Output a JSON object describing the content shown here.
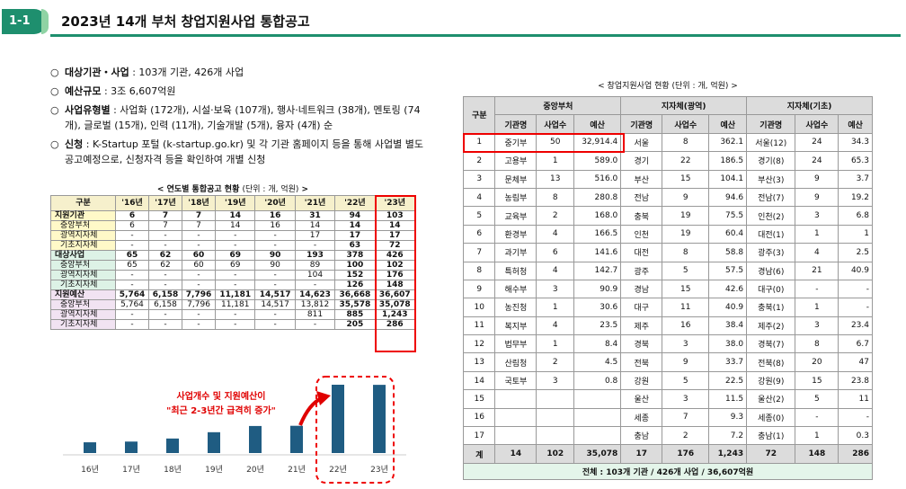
{
  "header": {
    "badge": "1-1",
    "title": "2023년 14개 부처 창업지원사업 통합공고"
  },
  "bullets": [
    {
      "label": "대상기관・사업",
      "text": " : 103개 기관, 426개 사업"
    },
    {
      "label": "예산규모",
      "text": " : 3조 6,607억원"
    },
    {
      "label": "사업유형별",
      "text": " : 사업화 (172개), 시설·보육 (107개), 행사·네트워크 (38개), 멘토링 (74개), 글로벌 (15개), 인력 (11개), 기술개발 (5개), 융자 (4개) 순"
    },
    {
      "label": "신청",
      "text": " : K-Startup 포털 (k-startup.go.kr) 및 각 기관 홈페이지 등을 통해 사업별 별도 공고예정으로, 신청자격 등을 확인하여 개별 신청"
    }
  ],
  "yearly_table": {
    "title": "< 연도별 통합공고 현황 ",
    "unit": "(단위 : 개, 억원)",
    "title_end": " >",
    "headers": [
      "구분",
      "'16년",
      "'17년",
      "'18년",
      "'19년",
      "'20년",
      "'21년",
      "'22년",
      "'23년"
    ],
    "rows": [
      [
        "지원기관",
        "6",
        "7",
        "7",
        "14",
        "16",
        "31",
        "94",
        "103"
      ],
      [
        "중앙부처",
        "6",
        "7",
        "7",
        "14",
        "16",
        "14",
        "14",
        "14"
      ],
      [
        "광역지자체",
        "-",
        "-",
        "-",
        "-",
        "-",
        "17",
        "17",
        "17"
      ],
      [
        "기초지자체",
        "-",
        "-",
        "-",
        "-",
        "-",
        "-",
        "63",
        "72"
      ],
      [
        "대상사업",
        "65",
        "62",
        "60",
        "69",
        "90",
        "193",
        "378",
        "426"
      ],
      [
        "중앙부처",
        "65",
        "62",
        "60",
        "69",
        "90",
        "89",
        "100",
        "102"
      ],
      [
        "광역지자체",
        "-",
        "-",
        "-",
        "-",
        "-",
        "104",
        "152",
        "176"
      ],
      [
        "기초지자체",
        "-",
        "-",
        "-",
        "-",
        "-",
        "-",
        "126",
        "148"
      ],
      [
        "지원예산",
        "5,764",
        "6,158",
        "7,796",
        "11,181",
        "14,517",
        "14,623",
        "36,668",
        "36,607"
      ],
      [
        "중앙부처",
        "5,764",
        "6,158",
        "7,796",
        "11,181",
        "14,517",
        "13,812",
        "35,578",
        "35,078"
      ],
      [
        "광역지자체",
        "-",
        "-",
        "-",
        "-",
        "-",
        "811",
        "885",
        "1,243"
      ],
      [
        "기초지자체",
        "-",
        "-",
        "-",
        "-",
        "-",
        "-",
        "205",
        "286"
      ]
    ]
  },
  "chart_data": {
    "type": "bar",
    "categories": [
      "16년",
      "17년",
      "18년",
      "19년",
      "20년",
      "21년",
      "22년",
      "23년"
    ],
    "values": [
      5764,
      6158,
      7796,
      11181,
      14517,
      14623,
      36668,
      36607
    ],
    "annotation_line1": "사업개수 및 지원예산이",
    "annotation_line2": "\"최근 2-3년간 급격히 증가\"",
    "bar_color": "#1f5c82",
    "annotation_color": "#e00000"
  },
  "agency_table": {
    "title": "< 창업지원사업 현황 ",
    "unit": "(단위 : 개, 억원)",
    "title_end": " >",
    "group_headers": [
      "구분",
      "중앙부처",
      "지자체(광역)",
      "지자체(기초)"
    ],
    "sub_headers": [
      "기관명",
      "사업수",
      "예산",
      "기관명",
      "사업수",
      "예산",
      "기관명",
      "사업수",
      "예산"
    ],
    "rows": [
      [
        "1",
        "중기부",
        "50",
        "32,914.4",
        "서울",
        "8",
        "362.1",
        "서울(12)",
        "24",
        "34.3"
      ],
      [
        "2",
        "고용부",
        "1",
        "589.0",
        "경기",
        "22",
        "186.5",
        "경기(8)",
        "24",
        "65.3"
      ],
      [
        "3",
        "문체부",
        "13",
        "516.0",
        "부산",
        "15",
        "104.1",
        "부산(3)",
        "9",
        "3.7"
      ],
      [
        "4",
        "농림부",
        "8",
        "280.8",
        "전남",
        "9",
        "94.6",
        "전남(7)",
        "9",
        "19.2"
      ],
      [
        "5",
        "교육부",
        "2",
        "168.0",
        "충북",
        "19",
        "75.5",
        "인천(2)",
        "3",
        "6.8"
      ],
      [
        "6",
        "환경부",
        "4",
        "166.5",
        "인천",
        "19",
        "60.4",
        "대전(1)",
        "1",
        "1"
      ],
      [
        "7",
        "과기부",
        "6",
        "141.6",
        "대전",
        "8",
        "58.8",
        "광주(3)",
        "4",
        "2.5"
      ],
      [
        "8",
        "특허청",
        "4",
        "142.7",
        "광주",
        "5",
        "57.5",
        "경남(6)",
        "21",
        "40.9"
      ],
      [
        "9",
        "해수부",
        "3",
        "90.9",
        "경남",
        "15",
        "42.6",
        "대구(0)",
        "-",
        "-"
      ],
      [
        "10",
        "농진청",
        "1",
        "30.6",
        "대구",
        "11",
        "40.9",
        "충북(1)",
        "1",
        "-"
      ],
      [
        "11",
        "복지부",
        "4",
        "23.5",
        "제주",
        "16",
        "38.4",
        "제주(2)",
        "3",
        "23.4"
      ],
      [
        "12",
        "법무부",
        "1",
        "8.4",
        "경북",
        "3",
        "38.0",
        "경북(7)",
        "8",
        "6.7"
      ],
      [
        "13",
        "산림청",
        "2",
        "4.5",
        "전북",
        "9",
        "33.7",
        "전북(8)",
        "20",
        "47"
      ],
      [
        "14",
        "국토부",
        "3",
        "0.8",
        "강원",
        "5",
        "22.5",
        "강원(9)",
        "15",
        "23.8"
      ],
      [
        "15",
        "",
        "",
        "",
        "울산",
        "3",
        "11.5",
        "울산(2)",
        "5",
        "11"
      ],
      [
        "16",
        "",
        "",
        "",
        "세종",
        "7",
        "9.3",
        "세종(0)",
        "-",
        "-"
      ],
      [
        "17",
        "",
        "",
        "",
        "충남",
        "2",
        "7.2",
        "충남(1)",
        "1",
        "0.3"
      ]
    ],
    "sum_row": [
      "계",
      "14",
      "102",
      "35,078",
      "17",
      "176",
      "1,243",
      "72",
      "148",
      "286"
    ],
    "total_text": "전체 : 103개 기관 / 426개 사업 / 36,607억원"
  }
}
